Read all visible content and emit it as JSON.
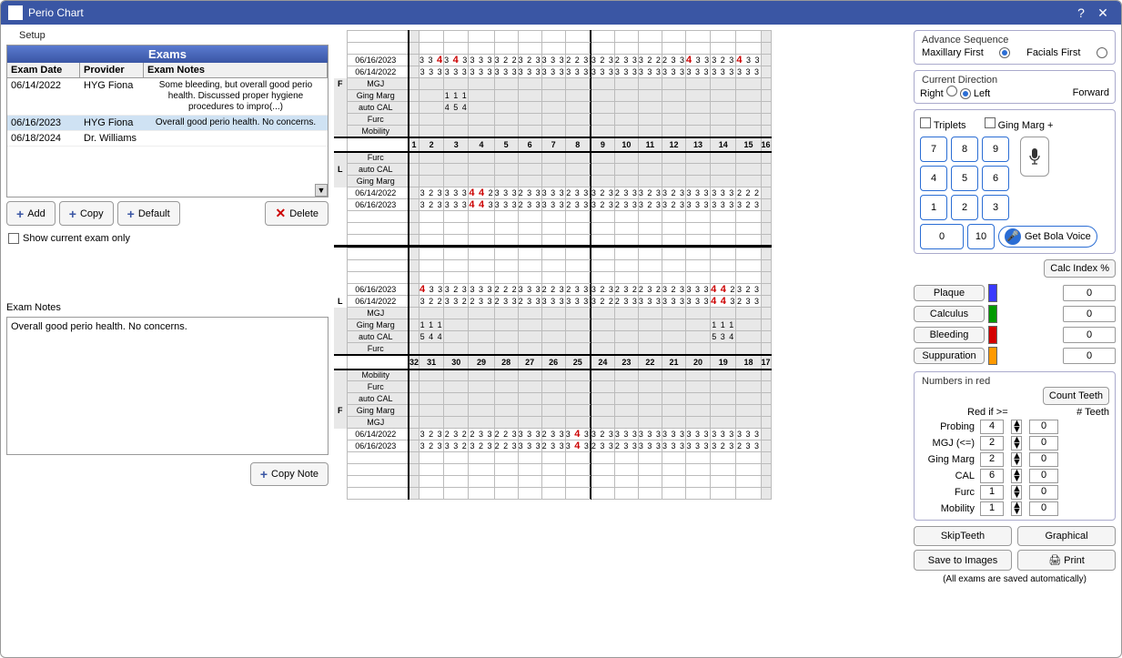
{
  "window": {
    "title": "Perio Chart",
    "help": "?",
    "close": "✕"
  },
  "left": {
    "setup": "Setup",
    "exams_header": "Exams",
    "columns": {
      "date": "Exam Date",
      "provider": "Provider",
      "notes": "Exam Notes"
    },
    "rows": [
      {
        "date": "06/14/2022",
        "provider": "HYG Fiona",
        "notes": "Some bleeding, but overall good perio health. Discussed proper hygiene procedures to impro(...)",
        "selected": false
      },
      {
        "date": "06/16/2023",
        "provider": "HYG Fiona",
        "notes": "Overall good perio health. No concerns.",
        "selected": true
      },
      {
        "date": "06/18/2024",
        "provider": "Dr. Williams",
        "notes": "",
        "selected": false
      }
    ],
    "buttons": {
      "add": "Add",
      "copy": "Copy",
      "default": "Default",
      "delete": "Delete"
    },
    "show_current": "Show current exam only",
    "notes_label": "Exam Notes",
    "notes_value": "Overall good perio health. No concerns.",
    "copy_note": "Copy Note"
  },
  "chart": {
    "row_types": [
      "MGJ",
      "Ging Marg",
      "auto CAL",
      "Furc",
      "Mobility"
    ],
    "upper_teeth": [
      "1",
      "2",
      "3",
      "4",
      "5",
      "6",
      "7",
      "8",
      "9",
      "10",
      "11",
      "12",
      "13",
      "14",
      "15",
      "16"
    ],
    "lower_teeth": [
      "32",
      "31",
      "30",
      "29",
      "28",
      "27",
      "26",
      "25",
      "24",
      "23",
      "22",
      "21",
      "20",
      "19",
      "18",
      "17"
    ],
    "arch_labels": {
      "F": "F",
      "L": "L"
    },
    "colors": {
      "normal": "#444444",
      "red": "#cc0000",
      "shade": "#e8e8e8",
      "grid": "#bbbbbb",
      "heavy": "#000000"
    },
    "sections": [
      {
        "arch": "F",
        "side": "upper",
        "rows": [
          {
            "label": "06/16/2023",
            "cells": [
              null,
              [
                "3",
                "3",
                "4",
                "r"
              ],
              [
                "3",
                "4",
                "3",
                "r"
              ],
              "3 3 3",
              "3 2 2",
              "3 2 3",
              "3 3 3",
              "2 2 3",
              "3 2 3",
              "2 3 3",
              "3 2 2",
              "2 3 3",
              [
                "4",
                "3",
                "3",
                "r"
              ],
              "3 2 3",
              [
                "4",
                "3",
                "3",
                "r"
              ],
              null
            ]
          },
          {
            "label": "06/14/2022",
            "cells": [
              null,
              "3 3 3",
              "3 3 3",
              "3 3 3",
              "3 3 3",
              "3 3 3",
              "3 3 3",
              "3 3 3",
              "3 3 3",
              "3 3 3",
              "3 3 3",
              "3 3 3",
              "3 3 3",
              "3 3 3",
              "3 3 3",
              null
            ]
          },
          {
            "label": "MGJ",
            "shade": true,
            "cells": []
          },
          {
            "label": "Ging Marg",
            "shade": true,
            "cells": [
              null,
              null,
              "1 1 1",
              null,
              null,
              null,
              null,
              null,
              null,
              null,
              null,
              null,
              null,
              null,
              null,
              null
            ]
          },
          {
            "label": "auto CAL",
            "shade": true,
            "cells": [
              null,
              null,
              "4 5 4",
              null,
              null,
              null,
              null,
              null,
              null,
              null,
              null,
              null,
              null,
              null,
              null,
              null
            ]
          },
          {
            "label": "Furc",
            "shade": true,
            "cells": []
          },
          {
            "label": "Mobility",
            "shade": true,
            "cells": []
          }
        ]
      },
      {
        "arch": "L",
        "side": "upper-lingual",
        "rows": [
          {
            "label": "Furc",
            "shade": true,
            "cells": []
          },
          {
            "label": "auto CAL",
            "shade": true,
            "cells": []
          },
          {
            "label": "Ging Marg",
            "shade": true,
            "cells": []
          },
          {
            "label": "06/14/2022",
            "cells": [
              null,
              "3 2 3",
              "3 3 3",
              [
                "4",
                "4",
                "2",
                "r"
              ],
              "3 3 3",
              "2 3 3",
              "3 3 3",
              "2 3 3",
              "3 2 3",
              "2 3 3",
              "3 2 3",
              "3 2 3",
              "3 3 3",
              "3 3 3",
              "2 2 2",
              null
            ]
          },
          {
            "label": "06/16/2023",
            "cells": [
              null,
              "3 2 3",
              "3 3 3",
              [
                "4",
                "4",
                "3",
                "r"
              ],
              "3 3 3",
              "2 3 3",
              "3 3 3",
              "2 3 3",
              "3 2 3",
              "2 3 3",
              "3 2 3",
              "3 2 3",
              "3 3 3",
              "3 3 3",
              "3 2 3",
              null
            ]
          }
        ]
      },
      {
        "arch": "L",
        "side": "lower-lingual",
        "rows": [
          {
            "label": "06/16/2023",
            "cells": [
              null,
              [
                "4",
                "3",
                "3",
                "r"
              ],
              "3 2 3",
              "3 3 3",
              "2 2 2",
              "3 3 3",
              "2 2 3",
              "2 3 3",
              "3 2 3",
              "2 3 2",
              "2 3 2",
              "3 2 3",
              "3 3 3",
              [
                "4",
                "4",
                "2",
                "r"
              ],
              "3 2 3",
              null
            ]
          },
          {
            "label": "06/14/2022",
            "cells": [
              null,
              "3 2 2",
              "3 3 2",
              "2 3 3",
              "2 3 3",
              "2 3 3",
              "3 3 3",
              "3 3 3",
              "3 2 2",
              "2 3 3",
              "3 3 3",
              "3 3 3",
              "3 3 3",
              [
                "4",
                "4",
                "3",
                "r"
              ],
              "2 3 3",
              null
            ]
          },
          {
            "label": "MGJ",
            "shade": true,
            "cells": []
          },
          {
            "label": "Ging Marg",
            "shade": true,
            "cells": [
              null,
              "1 1 1",
              null,
              null,
              null,
              null,
              null,
              null,
              null,
              null,
              null,
              null,
              null,
              "1 1 1",
              null,
              null
            ]
          },
          {
            "label": "auto CAL",
            "shade": true,
            "cells": [
              null,
              "5 4 4",
              null,
              null,
              null,
              null,
              null,
              null,
              null,
              null,
              null,
              null,
              null,
              "5 3 4",
              null,
              null
            ]
          },
          {
            "label": "Furc",
            "shade": true,
            "cells": []
          }
        ]
      },
      {
        "arch": "F",
        "side": "lower",
        "rows": [
          {
            "label": "Mobility",
            "shade": true,
            "cells": []
          },
          {
            "label": "Furc",
            "shade": true,
            "cells": []
          },
          {
            "label": "auto CAL",
            "shade": true,
            "cells": []
          },
          {
            "label": "Ging Marg",
            "shade": true,
            "cells": []
          },
          {
            "label": "MGJ",
            "shade": true,
            "cells": []
          },
          {
            "label": "06/14/2022",
            "cells": [
              null,
              "3 2 3",
              "2 3 2",
              "2 3 3",
              "2 2 3",
              "3 3 3",
              "2 3 3",
              [
                "3",
                "4",
                "3",
                "r"
              ],
              "3 2 3",
              "3 3 3",
              "3 3 3",
              "3 3 3",
              "3 3 3",
              "3 3 3",
              "3 3 3",
              null
            ]
          },
          {
            "label": "06/16/2023",
            "cells": [
              null,
              "3 2 3",
              "3 3 2",
              "3 2 3",
              "2 2 3",
              "3 3 3",
              "2 3 3",
              [
                "3",
                "4",
                "3",
                "r"
              ],
              "2 3 3",
              "2 3 3",
              "3 3 3",
              "3 3 3",
              "3 3 3",
              "3 2 3",
              "2 3 3",
              null
            ]
          }
        ]
      }
    ]
  },
  "right": {
    "advance": {
      "legend": "Advance Sequence",
      "maxillary": "Maxillary First",
      "facials": "Facials First",
      "max_on": true,
      "fac_on": false
    },
    "direction": {
      "legend": "Current Direction",
      "right": "Right",
      "left": "Left",
      "forward": "Forward",
      "right_on": false,
      "left_on": true
    },
    "triplets": "Triplets",
    "ging_plus": "Ging Marg +",
    "keys": [
      "7",
      "8",
      "9",
      "4",
      "5",
      "6",
      "1",
      "2",
      "3"
    ],
    "key0": "0",
    "key10": "10",
    "bola": "Get Bola Voice",
    "calc": "Calc Index %",
    "indices": [
      {
        "label": "Plaque",
        "color": "#3a3aff",
        "value": "0"
      },
      {
        "label": "Calculus",
        "color": "#009a00",
        "value": "0"
      },
      {
        "label": "Bleeding",
        "color": "#d40000",
        "value": "0"
      },
      {
        "label": "Suppuration",
        "color": "#ff9900",
        "value": "0"
      }
    ],
    "numbers_red": {
      "legend": "Numbers in red",
      "count": "Count Teeth",
      "red_if": "Red if >=",
      "num_teeth": "# Teeth",
      "rows": [
        {
          "label": "Probing",
          "val": "4",
          "teeth": "0"
        },
        {
          "label": "MGJ (<=)",
          "val": "2",
          "teeth": "0"
        },
        {
          "label": "Ging Marg",
          "val": "2",
          "teeth": "0"
        },
        {
          "label": "CAL",
          "val": "6",
          "teeth": "0"
        },
        {
          "label": "Furc",
          "val": "1",
          "teeth": "0"
        },
        {
          "label": "Mobility",
          "val": "1",
          "teeth": "0"
        }
      ]
    },
    "bottom": {
      "skip": "SkipTeeth",
      "graphical": "Graphical",
      "save": "Save to Images",
      "print": "Print"
    },
    "footnote": "(All exams are saved automatically)"
  }
}
